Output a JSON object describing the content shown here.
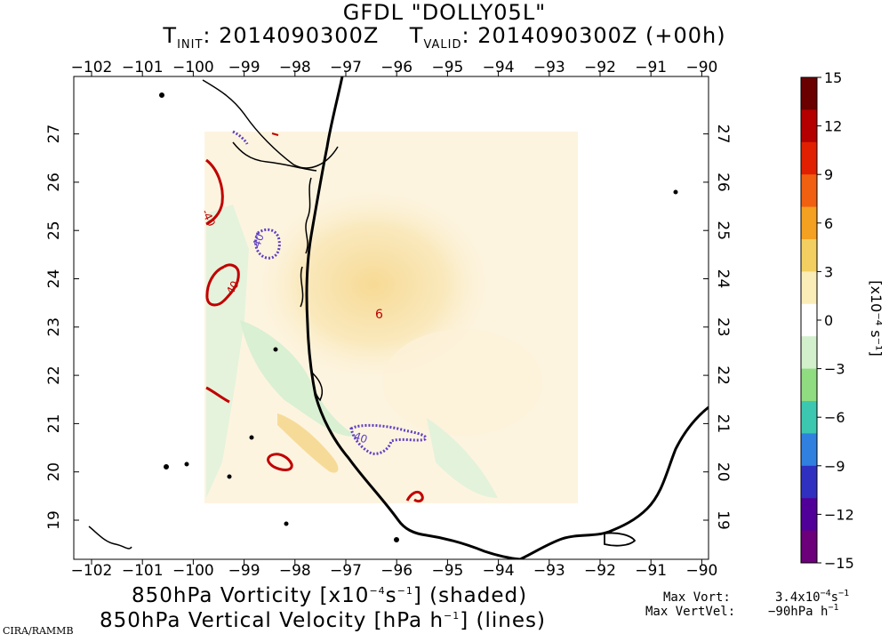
{
  "title": {
    "model_line": "GFDL \"DOLLY05L\"",
    "t_init_label": "T",
    "t_init_sub": "INIT",
    "t_init_value": ": 2014090300Z",
    "t_valid_label": "T",
    "t_valid_sub": "VALID",
    "t_valid_value": ": 2014090300Z (+00h)"
  },
  "axes": {
    "longitude_ticks": [
      "−102",
      "−101",
      "−100",
      "−99",
      "−98",
      "−97",
      "−96",
      "−95",
      "−94",
      "−93",
      "−92",
      "−91",
      "−90"
    ],
    "latitude_ticks": [
      "19",
      "20",
      "21",
      "22",
      "23",
      "24",
      "25",
      "26",
      "27"
    ]
  },
  "colorbar": {
    "ticks": [
      "15",
      "12",
      "9",
      "6",
      "3",
      "0",
      "−3",
      "−6",
      "−9",
      "−12",
      "−15"
    ],
    "unit_label": "[x10⁻⁴ s⁻¹]",
    "colors": [
      "#6b0000",
      "#b40000",
      "#e02000",
      "#f06010",
      "#f4a020",
      "#f2cf60",
      "#fbedb8",
      "#ffffff",
      "#d2f0cc",
      "#90dc80",
      "#3cc8b0",
      "#3080e0",
      "#3030c0",
      "#500098",
      "#6b007a"
    ]
  },
  "contours": {
    "labels": [
      "-40",
      "40",
      "-40",
      "40",
      "6"
    ],
    "positive_color": "#c00000",
    "negative_color": "#6040c0"
  },
  "bottom": {
    "line1_a": "850hPa Vorticity [x10",
    "line1_sup": "−4",
    "line1_b": "s",
    "line1_sup2": "−1",
    "line1_c": "] (shaded)",
    "line2_a": "850hPa Vertical Velocity [hPa h",
    "line2_sup": "−1",
    "line2_c": "] (lines)"
  },
  "stats": {
    "max_vort_label": "Max Vort:",
    "max_vort_value_a": "3.4x10",
    "max_vort_sup": "−4",
    "max_vort_value_b": "s",
    "max_vort_sup2": "−1",
    "max_vertvel_label": "Max VertVel:",
    "max_vertvel_value": "−90hPa h",
    "max_vertvel_sup": "−1"
  },
  "credit": "CIRA/RAMMB"
}
